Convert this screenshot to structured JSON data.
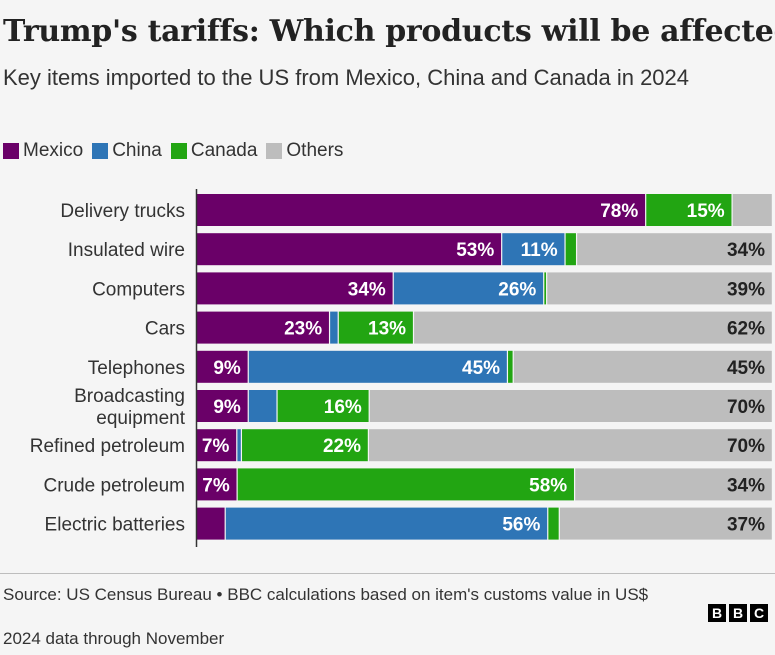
{
  "title": "Trump's tariffs: Which products will be affected?",
  "subtitle": "Key items imported to the US from Mexico, China and Canada in 2024",
  "legend": [
    {
      "label": "Mexico",
      "color": "#6a0068"
    },
    {
      "label": "China",
      "color": "#2e75b6"
    },
    {
      "label": "Canada",
      "color": "#22a512"
    },
    {
      "label": "Others",
      "color": "#bdbdbd"
    }
  ],
  "source": "Source: US Census Bureau • BBC calculations based on item's customs value in US$",
  "note": "2024 data through November",
  "logo": [
    "B",
    "B",
    "C"
  ],
  "chart_data": {
    "type": "bar",
    "orientation": "horizontal",
    "stacked": true,
    "unit": "%",
    "xlim": [
      0,
      100
    ],
    "title": "Trump's tariffs: Which products will be affected?",
    "categories": [
      [
        "Delivery trucks"
      ],
      [
        "Insulated wire"
      ],
      [
        "Computers"
      ],
      [
        "Cars"
      ],
      [
        "Telephones"
      ],
      [
        "Broadcasting",
        "equipment"
      ],
      [
        "Refined petroleum"
      ],
      [
        "Crude petroleum"
      ],
      [
        "Electric batteries"
      ]
    ],
    "series": [
      {
        "name": "Mexico",
        "color": "#6a0068",
        "label_color": "#ffffff",
        "values": [
          78,
          53,
          34,
          23,
          9,
          9,
          7,
          7,
          5
        ],
        "labels": [
          "78%",
          "53%",
          "34%",
          "23%",
          "9%",
          "9%",
          "7%",
          "7%",
          ""
        ]
      },
      {
        "name": "China",
        "color": "#2e75b6",
        "label_color": "#ffffff",
        "values": [
          0,
          11,
          26,
          1.5,
          45,
          5,
          0.8,
          0,
          56
        ],
        "labels": [
          "",
          "11%",
          "26%",
          "",
          "45%",
          "",
          "",
          "",
          "56%"
        ]
      },
      {
        "name": "Canada",
        "color": "#22a512",
        "label_color": "#ffffff",
        "values": [
          15,
          2,
          0.5,
          13,
          1,
          16,
          22,
          58,
          2
        ],
        "labels": [
          "15%",
          "",
          "",
          "13%",
          "",
          "16%",
          "22%",
          "58%",
          ""
        ]
      },
      {
        "name": "Others",
        "color": "#bdbdbd",
        "label_color": "#222222",
        "values": [
          7,
          34,
          39,
          62,
          45,
          70,
          70,
          34,
          37
        ],
        "labels": [
          "",
          "34%",
          "39%",
          "62%",
          "45%",
          "70%",
          "70%",
          "34%",
          "37%"
        ]
      }
    ]
  }
}
